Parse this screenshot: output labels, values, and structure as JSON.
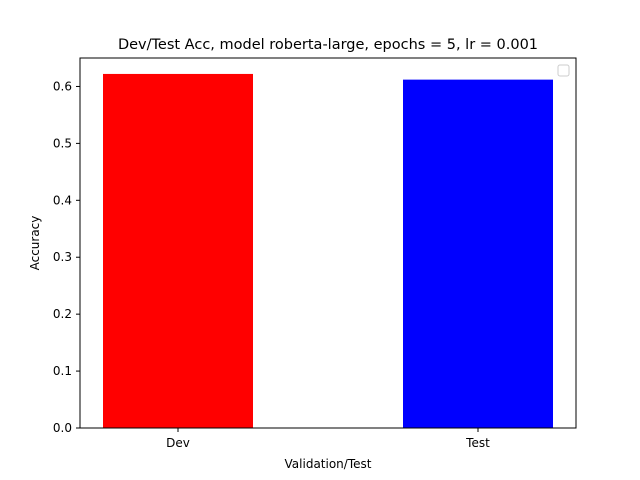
{
  "chart_data": {
    "type": "bar",
    "title": "Dev/Test Acc, model roberta-large, epochs = 5, lr = 0.001",
    "xlabel": "Validation/Test",
    "ylabel": "Accuracy",
    "categories": [
      "Dev",
      "Test"
    ],
    "values": [
      0.622,
      0.612
    ],
    "bar_colors": [
      "#ff0000",
      "#0000ff"
    ],
    "ylim": [
      0,
      0.65
    ],
    "yticks": [
      0.0,
      0.1,
      0.2,
      0.3,
      0.4,
      0.5,
      0.6
    ],
    "ytick_labels": [
      "0.0",
      "0.1",
      "0.2",
      "0.3",
      "0.4",
      "0.5",
      "0.6"
    ],
    "grid": false,
    "legend": {
      "placement": "top-right",
      "entries": []
    }
  }
}
